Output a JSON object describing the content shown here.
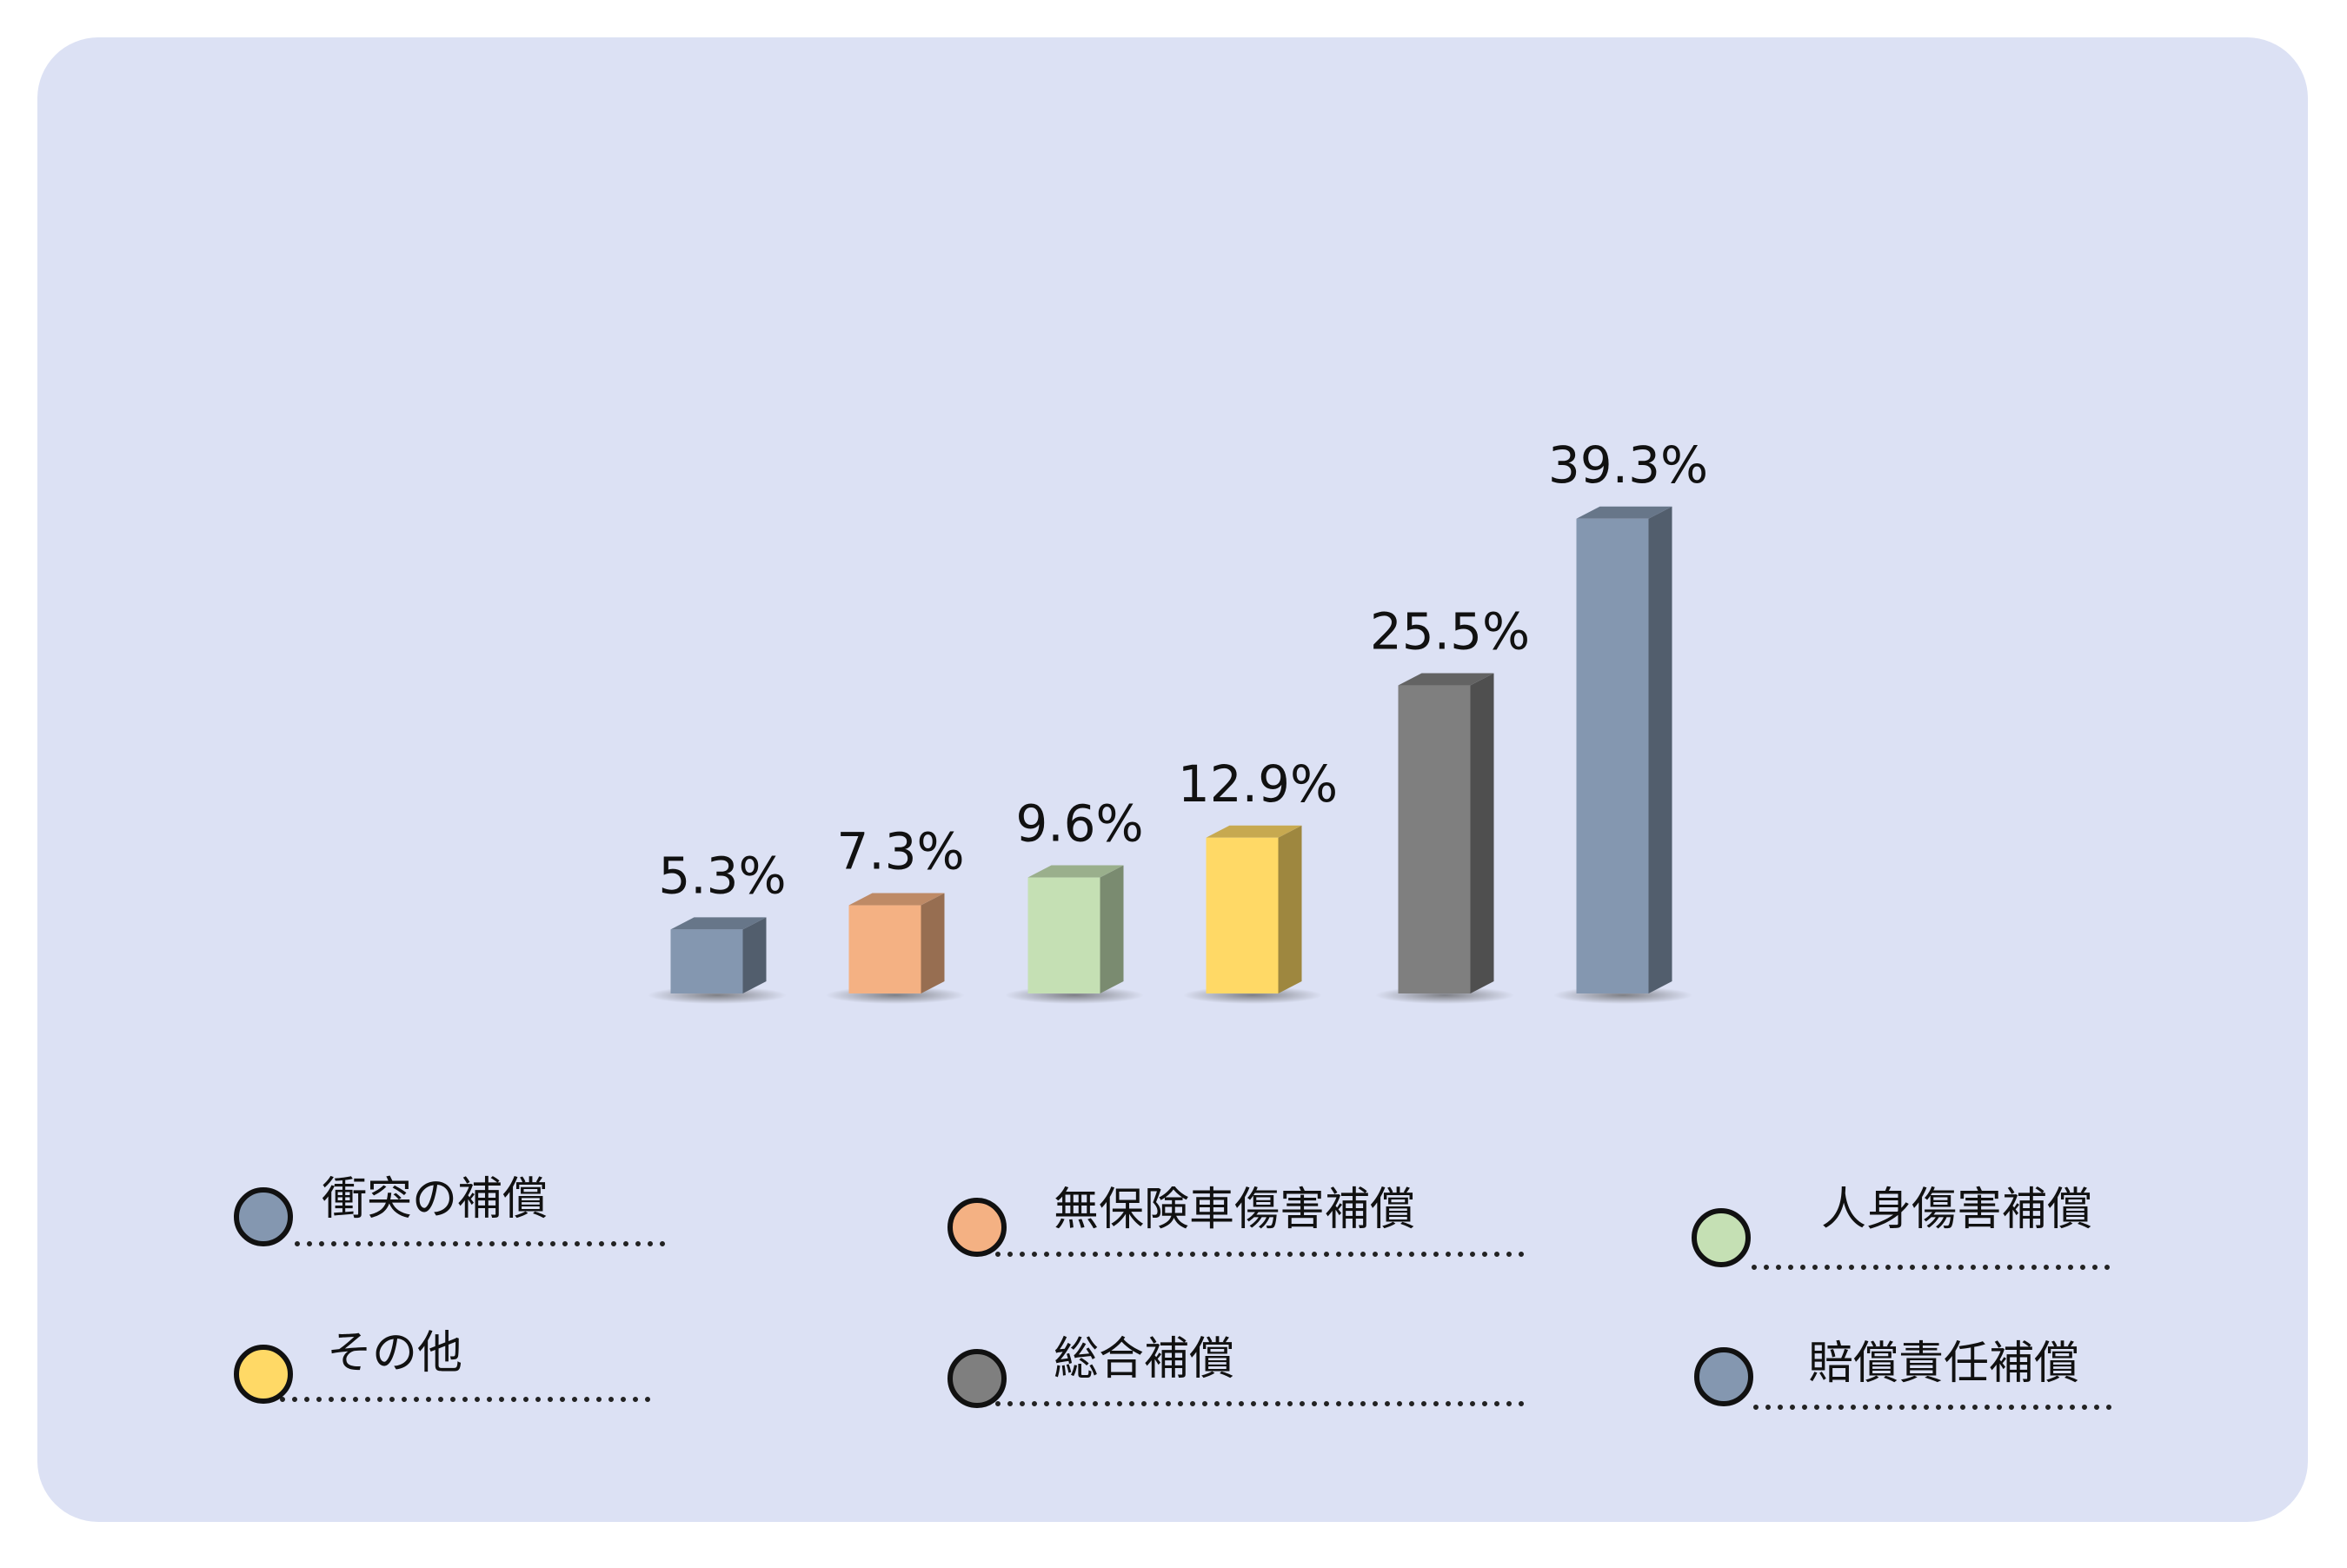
{
  "chart_data": {
    "type": "bar3d",
    "categories": [
      "衝突の補償",
      "無保険車傷害補償",
      "人身傷害補償",
      "その他",
      "総合補償",
      "賠償責任補償"
    ],
    "values": [
      5.3,
      7.3,
      9.6,
      12.9,
      25.5,
      39.3
    ],
    "value_labels": [
      "5.3%",
      "7.3%",
      "9.6%",
      "12.9%",
      "25.5%",
      "39.3%"
    ],
    "colors": [
      "#8497b0",
      "#f4b183",
      "#c5e0b4",
      "#ffd966",
      "#7f7f7f",
      "#8497b0"
    ]
  }
}
